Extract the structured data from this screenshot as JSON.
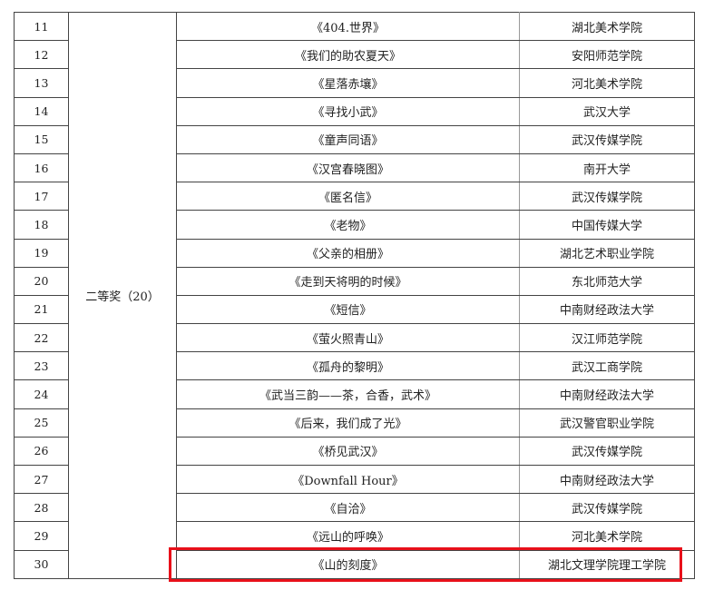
{
  "award_group": "二等奖（20）",
  "highlight_color": "#e8101a",
  "rows": [
    {
      "no": "11",
      "title": "《404.世界》",
      "school": "湖北美术学院"
    },
    {
      "no": "12",
      "title": "《我们的助农夏天》",
      "school": "安阳师范学院"
    },
    {
      "no": "13",
      "title": "《星落赤壤》",
      "school": "河北美术学院"
    },
    {
      "no": "14",
      "title": "《寻找小武》",
      "school": "武汉大学"
    },
    {
      "no": "15",
      "title": "《童声同语》",
      "school": "武汉传媒学院"
    },
    {
      "no": "16",
      "title": "《汉宫春晓图》",
      "school": "南开大学"
    },
    {
      "no": "17",
      "title": "《匿名信》",
      "school": "武汉传媒学院"
    },
    {
      "no": "18",
      "title": "《老物》",
      "school": "中国传媒大学"
    },
    {
      "no": "19",
      "title": "《父亲的相册》",
      "school": "湖北艺术职业学院"
    },
    {
      "no": "20",
      "title": "《走到天将明的时候》",
      "school": "东北师范大学"
    },
    {
      "no": "21",
      "title": "《短信》",
      "school": "中南财经政法大学"
    },
    {
      "no": "22",
      "title": "《萤火照青山》",
      "school": "汉江师范学院"
    },
    {
      "no": "23",
      "title": "《孤舟的黎明》",
      "school": "武汉工商学院"
    },
    {
      "no": "24",
      "title": "《武当三韵——茶，合香，武术》",
      "school": "中南财经政法大学"
    },
    {
      "no": "25",
      "title": "《后来，我们成了光》",
      "school": "武汉警官职业学院"
    },
    {
      "no": "26",
      "title": "《桥见武汉》",
      "school": "武汉传媒学院"
    },
    {
      "no": "27",
      "title": "《Downfall Hour》",
      "school": "中南财经政法大学"
    },
    {
      "no": "28",
      "title": "《自洽》",
      "school": "武汉传媒学院"
    },
    {
      "no": "29",
      "title": "《远山的呼唤》",
      "school": "河北美术学院"
    },
    {
      "no": "30",
      "title": "《山的刻度》",
      "school": "湖北文理学院理工学院"
    }
  ]
}
